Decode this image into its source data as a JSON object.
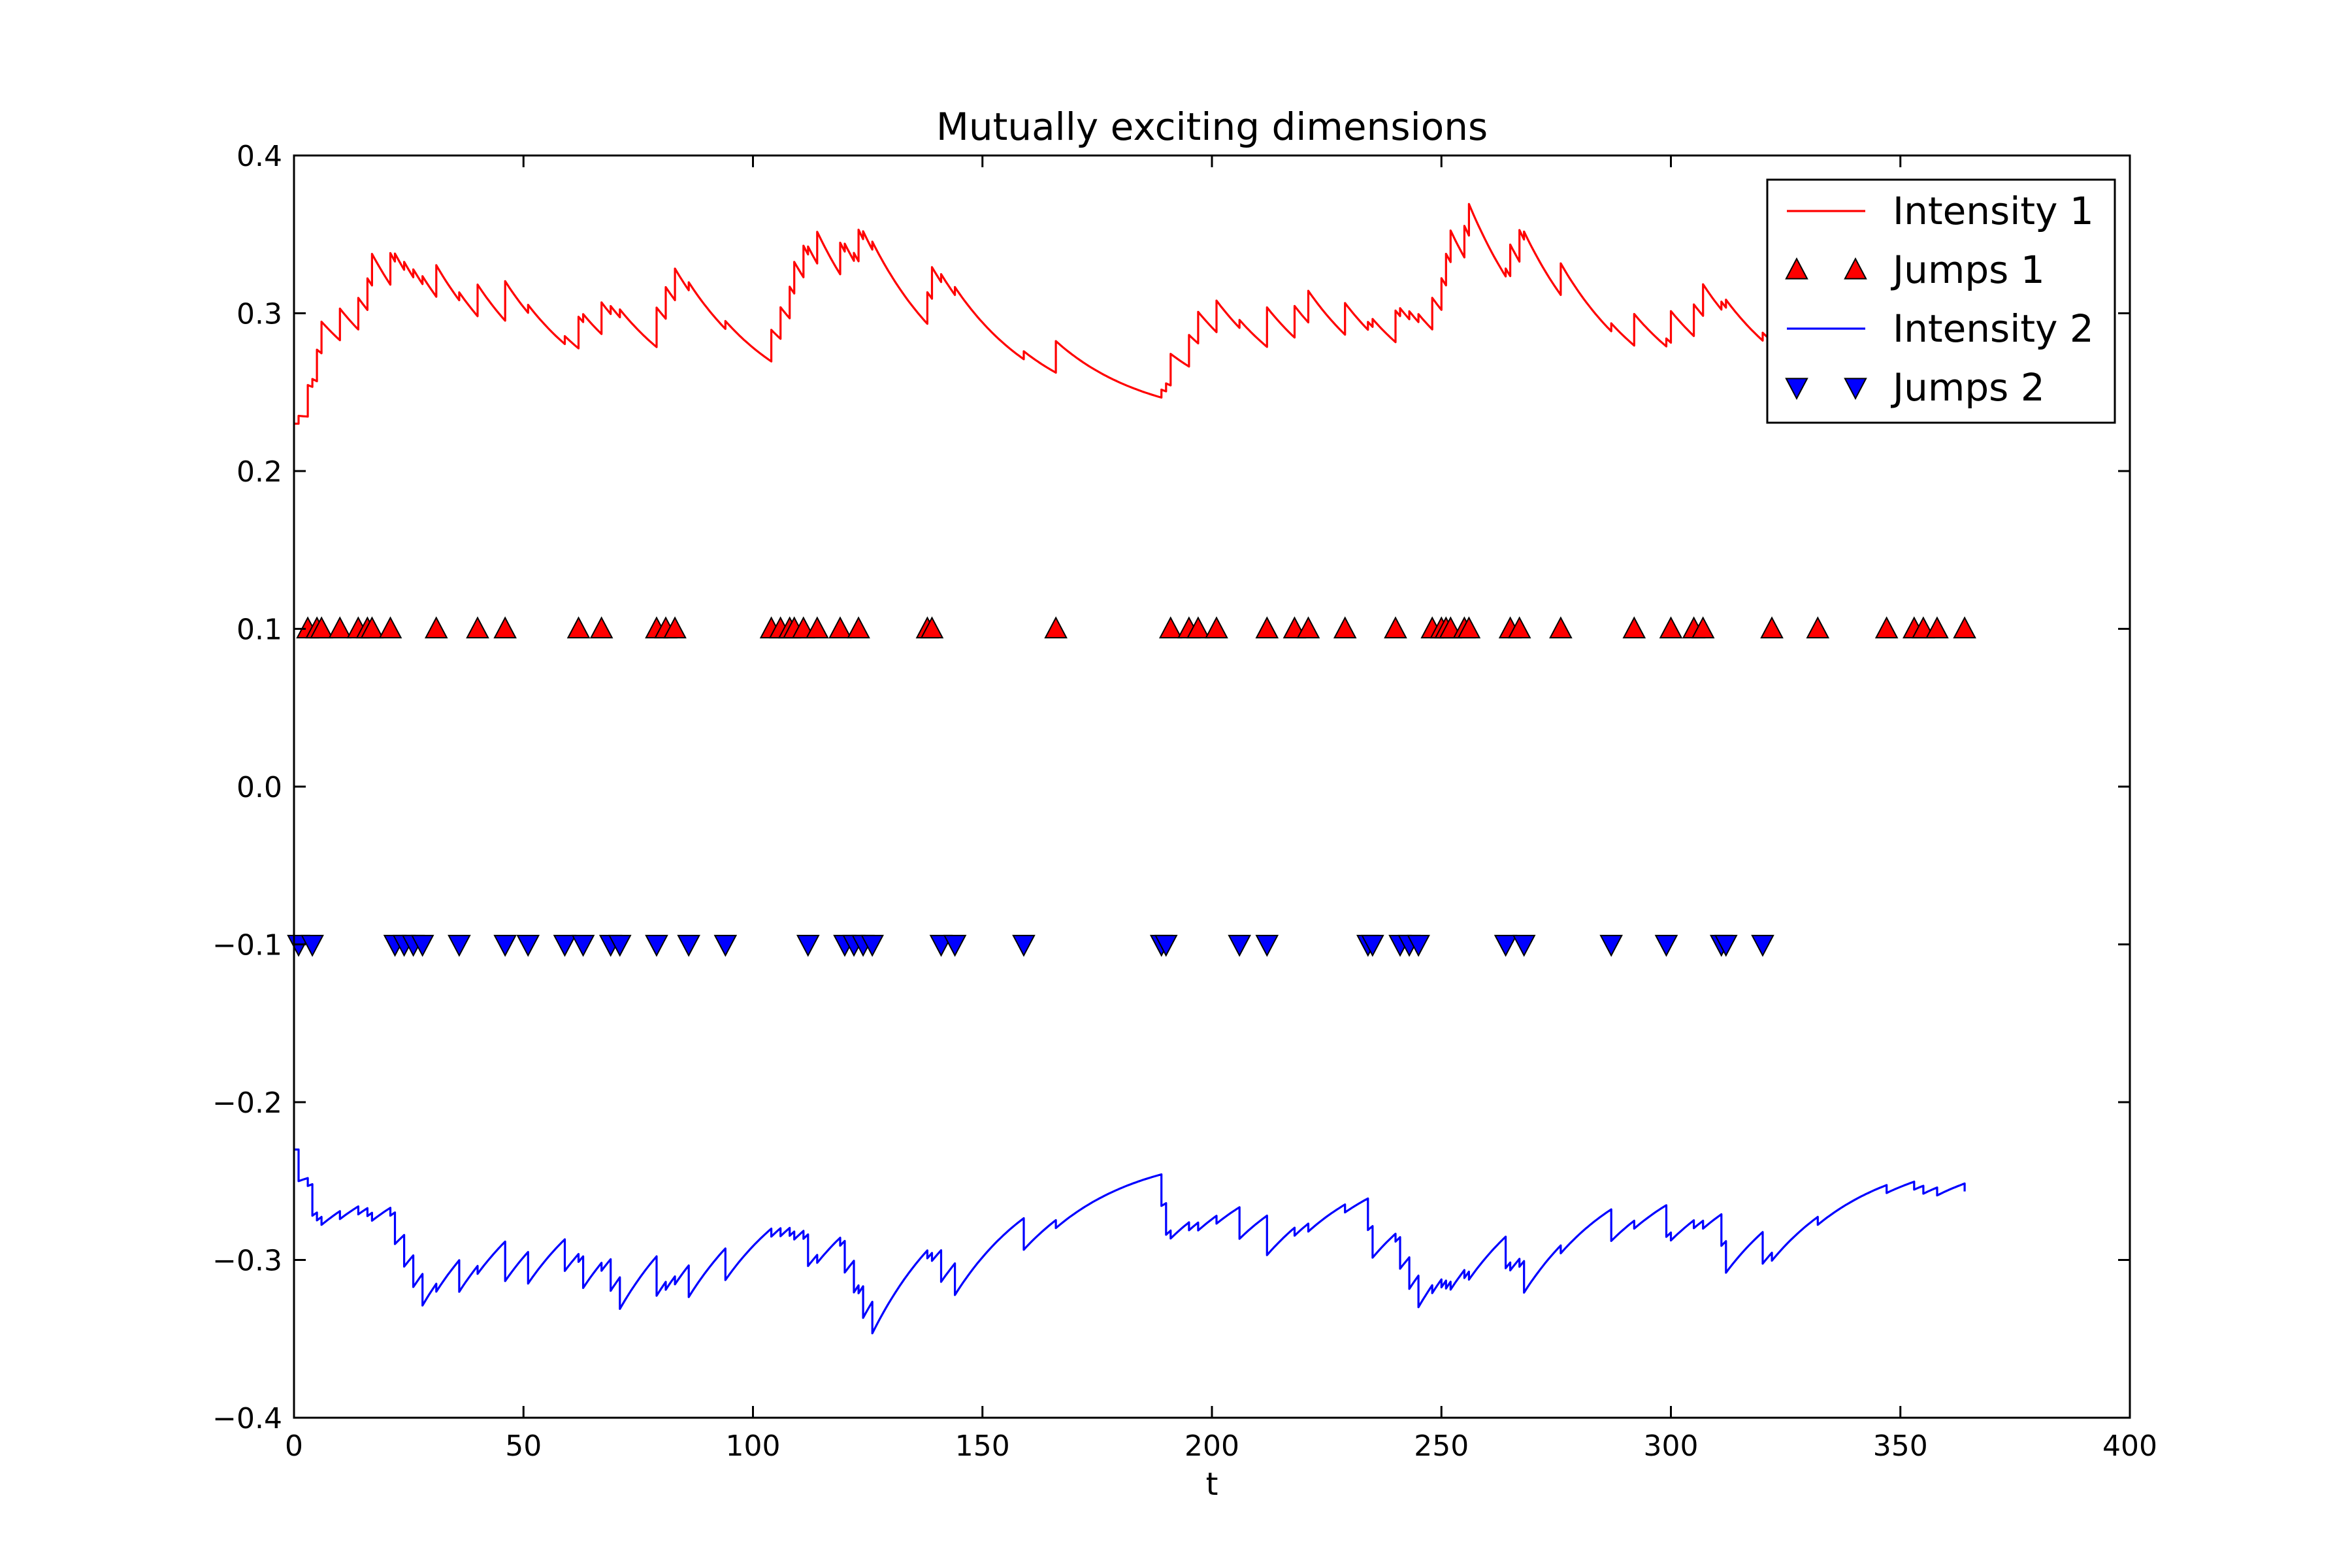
{
  "chart_data": {
    "type": "line",
    "title": "Mutually exciting dimensions",
    "xlabel": "t",
    "ylabel": "",
    "xlim": [
      0,
      400
    ],
    "ylim": [
      -0.4,
      0.4
    ],
    "xticks": [
      0,
      50,
      100,
      150,
      200,
      250,
      300,
      350,
      400
    ],
    "xtick_labels": [
      "0",
      "50",
      "100",
      "150",
      "200",
      "250",
      "300",
      "350",
      "400"
    ],
    "yticks": [
      -0.4,
      -0.3,
      -0.2,
      -0.1,
      0.0,
      0.1,
      0.2,
      0.3,
      0.4
    ],
    "ytick_labels": [
      "−0.4",
      "−0.3",
      "−0.2",
      "−0.1",
      "0.0",
      "0.1",
      "0.2",
      "0.3",
      "0.4"
    ],
    "grid": false,
    "legend_position": "top-right",
    "series": [
      {
        "name": "Intensity 1",
        "kind": "line",
        "color": "#ff0000",
        "x_end": 364,
        "baseline": 0.23,
        "decay_rate": 0.05,
        "self_excitation": 0.02,
        "cross_excitation": 0.005
      },
      {
        "name": "Jumps 1",
        "kind": "marker",
        "marker": "triangle-up",
        "color": "#ff0000",
        "y": 0.1,
        "x": [
          3,
          5,
          6,
          10,
          14,
          16,
          17,
          21,
          31,
          40,
          46,
          62,
          67,
          79,
          81,
          83,
          104,
          106,
          108,
          109,
          111,
          114,
          119,
          123,
          138,
          139,
          166,
          191,
          195,
          197,
          201,
          212,
          218,
          221,
          229,
          240,
          248,
          250,
          251,
          252,
          255,
          256,
          265,
          267,
          276,
          292,
          300,
          305,
          307,
          322,
          332,
          347,
          353,
          355,
          358,
          364
        ]
      },
      {
        "name": "Intensity 2",
        "kind": "line",
        "color": "#0000ff",
        "x_end": 364,
        "baseline": -0.23,
        "decay_rate": 0.05,
        "self_excitation": -0.02,
        "cross_excitation": -0.005
      },
      {
        "name": "Jumps 2",
        "kind": "marker",
        "marker": "triangle-down",
        "color": "#0000ff",
        "y": -0.1,
        "x": [
          1,
          4,
          22,
          24,
          26,
          28,
          36,
          46,
          51,
          59,
          63,
          69,
          71,
          79,
          86,
          94,
          112,
          120,
          122,
          124,
          126,
          141,
          144,
          159,
          189,
          190,
          206,
          212,
          234,
          235,
          241,
          243,
          245,
          264,
          268,
          287,
          299,
          311,
          312,
          320
        ]
      }
    ]
  }
}
